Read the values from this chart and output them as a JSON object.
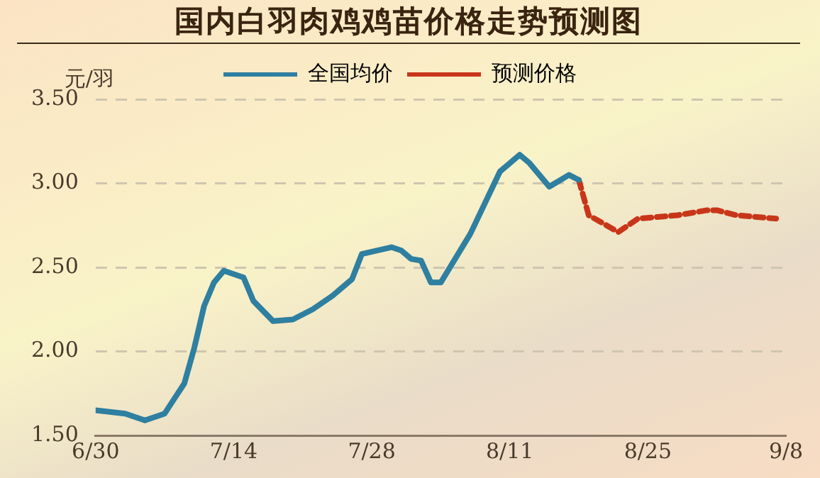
{
  "chart_data": {
    "type": "line",
    "title": "国内白羽肉鸡鸡苗价格走势预测图",
    "ylabel": "元/羽",
    "series": [
      {
        "name": "全国均价",
        "color": "#2e7fa0",
        "line_style": "solid",
        "x": [
          "--06-30",
          "--07-03",
          "--07-05",
          "--07-07",
          "--07-09",
          "--07-10",
          "--07-11",
          "--07-12",
          "--07-13",
          "--07-15",
          "--07-16",
          "--07-18",
          "--07-20",
          "--07-22",
          "--07-24",
          "--07-26",
          "--07-27",
          "--07-30",
          "--07-31",
          "--08-01",
          "--08-02",
          "--08-03",
          "--08-04",
          "--08-07",
          "--08-10",
          "--08-12",
          "--08-13",
          "--08-15",
          "--08-17",
          "--08-18"
        ],
        "values": [
          1.65,
          1.63,
          1.59,
          1.63,
          1.81,
          2.02,
          2.27,
          2.41,
          2.48,
          2.44,
          2.3,
          2.18,
          2.19,
          2.25,
          2.33,
          2.43,
          2.58,
          2.62,
          2.6,
          2.55,
          2.54,
          2.41,
          2.41,
          2.7,
          3.07,
          3.17,
          3.12,
          2.98,
          3.05,
          3.02
        ]
      },
      {
        "name": "预测价格",
        "color": "#c8361a",
        "line_style": "dashed",
        "x": [
          "--08-18",
          "--08-19",
          "--08-22",
          "--08-24",
          "--08-28",
          "--08-31",
          "--09-01",
          "--09-03",
          "--09-07"
        ],
        "values": [
          3.02,
          2.81,
          2.71,
          2.79,
          2.81,
          2.84,
          2.84,
          2.81,
          2.79
        ]
      }
    ],
    "xlim": [
      "--06-30",
      "--09-08"
    ],
    "xticks": [
      {
        "value": "--06-30",
        "label": "6/30"
      },
      {
        "value": "--07-14",
        "label": "7/14"
      },
      {
        "value": "--07-28",
        "label": "7/28"
      },
      {
        "value": "--08-11",
        "label": "8/11"
      },
      {
        "value": "--08-25",
        "label": "8/25"
      },
      {
        "value": "--09-08",
        "label": "9/8"
      }
    ],
    "ylim": [
      1.5,
      3.5
    ],
    "yticks": [
      {
        "value": 1.5,
        "label": "1.50"
      },
      {
        "value": 2,
        "label": "2.00"
      },
      {
        "value": 2.5,
        "label": "2.50"
      },
      {
        "value": 3,
        "label": "3.00"
      },
      {
        "value": 3.5,
        "label": "3.50"
      }
    ],
    "grid": "y",
    "legend": "top",
    "marker": "none"
  }
}
